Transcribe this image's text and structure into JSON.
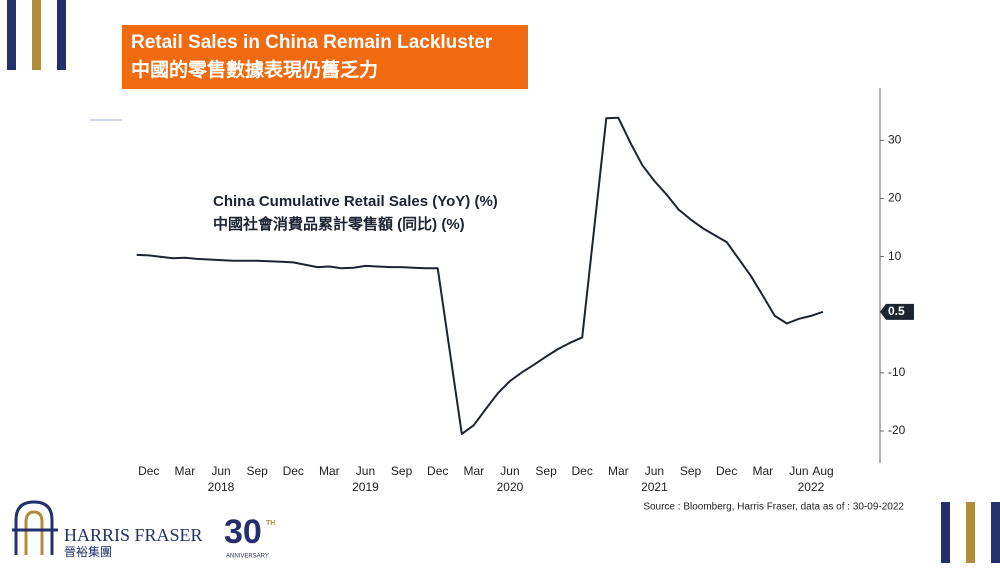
{
  "header": {
    "title": "Retail Sales in China Remain Lackluster",
    "subtitle": "中國的零售數據表現仍舊乏力"
  },
  "chart_data": {
    "type": "line",
    "title": "China Cumulative Retail Sales (YoY) (%)",
    "subtitle": "中國社會消費品累計零售額 (同比) (%)",
    "x": [
      "2017-11",
      "2017-12",
      "2018-02",
      "2018-03",
      "2018-04",
      "2018-05",
      "2018-06",
      "2018-07",
      "2018-08",
      "2018-09",
      "2018-10",
      "2018-11",
      "2018-12",
      "2019-02",
      "2019-03",
      "2019-04",
      "2019-05",
      "2019-06",
      "2019-07",
      "2019-08",
      "2019-09",
      "2019-10",
      "2019-11",
      "2019-12",
      "2020-02",
      "2020-03",
      "2020-04",
      "2020-05",
      "2020-06",
      "2020-07",
      "2020-08",
      "2020-09",
      "2020-10",
      "2020-11",
      "2020-12",
      "2021-02",
      "2021-03",
      "2021-04",
      "2021-05",
      "2021-06",
      "2021-07",
      "2021-08",
      "2021-09",
      "2021-10",
      "2021-11",
      "2021-12",
      "2022-02",
      "2022-03",
      "2022-04",
      "2022-05",
      "2022-06",
      "2022-07",
      "2022-08"
    ],
    "series": [
      {
        "name": "China Cumulative Retail Sales (YoY) (%)",
        "color": "#1c2331",
        "values": [
          10.3,
          10.2,
          9.7,
          9.8,
          9.6,
          9.5,
          9.4,
          9.3,
          9.3,
          9.3,
          9.2,
          9.1,
          9.0,
          8.2,
          8.3,
          8.0,
          8.1,
          8.4,
          8.3,
          8.2,
          8.2,
          8.1,
          8.0,
          8.0,
          -20.5,
          -19.0,
          -16.2,
          -13.5,
          -11.4,
          -9.9,
          -8.6,
          -7.2,
          -5.9,
          -4.8,
          -3.9,
          33.8,
          33.9,
          29.6,
          25.7,
          23.0,
          20.7,
          18.1,
          16.4,
          14.9,
          13.7,
          12.5,
          6.7,
          3.3,
          -0.2,
          -1.5,
          -0.7,
          -0.2,
          0.5
        ]
      }
    ],
    "ylim": [
      -25.5,
      39
    ],
    "yticks": [
      -20,
      -10,
      10,
      20,
      30
    ],
    "xticks": [
      {
        "value": "2017-12",
        "label": "Dec"
      },
      {
        "value": "2018-03",
        "label": "Mar"
      },
      {
        "value": "2018-06",
        "label": "Jun"
      },
      {
        "value": "2018-09",
        "label": "Sep"
      },
      {
        "value": "2018-12",
        "label": "Dec"
      },
      {
        "value": "2019-03",
        "label": "Mar"
      },
      {
        "value": "2019-06",
        "label": "Jun"
      },
      {
        "value": "2019-09",
        "label": "Sep"
      },
      {
        "value": "2019-12",
        "label": "Dec"
      },
      {
        "value": "2020-03",
        "label": "Mar"
      },
      {
        "value": "2020-06",
        "label": "Jun"
      },
      {
        "value": "2020-09",
        "label": "Sep"
      },
      {
        "value": "2020-12",
        "label": "Dec"
      },
      {
        "value": "2021-03",
        "label": "Mar"
      },
      {
        "value": "2021-06",
        "label": "Jun"
      },
      {
        "value": "2021-09",
        "label": "Sep"
      },
      {
        "value": "2021-12",
        "label": "Dec"
      },
      {
        "value": "2022-03",
        "label": "Mar"
      },
      {
        "value": "2022-06",
        "label": "Jun"
      },
      {
        "value": "2022-08",
        "label": "Aug"
      }
    ],
    "year_labels": [
      {
        "value": "2018-06",
        "label": "2018"
      },
      {
        "value": "2019-06",
        "label": "2019"
      },
      {
        "value": "2020-06",
        "label": "2020"
      },
      {
        "value": "2021-06",
        "label": "2021"
      },
      {
        "value": "2022-07",
        "label": "2022"
      }
    ],
    "source": "Source : Bloomberg, Harris Fraser, data as of : 30-09-2022"
  },
  "logo": {
    "name": "HARRIS FRASER",
    "chinese": "晉裕集團",
    "number": "30",
    "suffix": "TH",
    "tagline": "ANNIVERSARY"
  }
}
